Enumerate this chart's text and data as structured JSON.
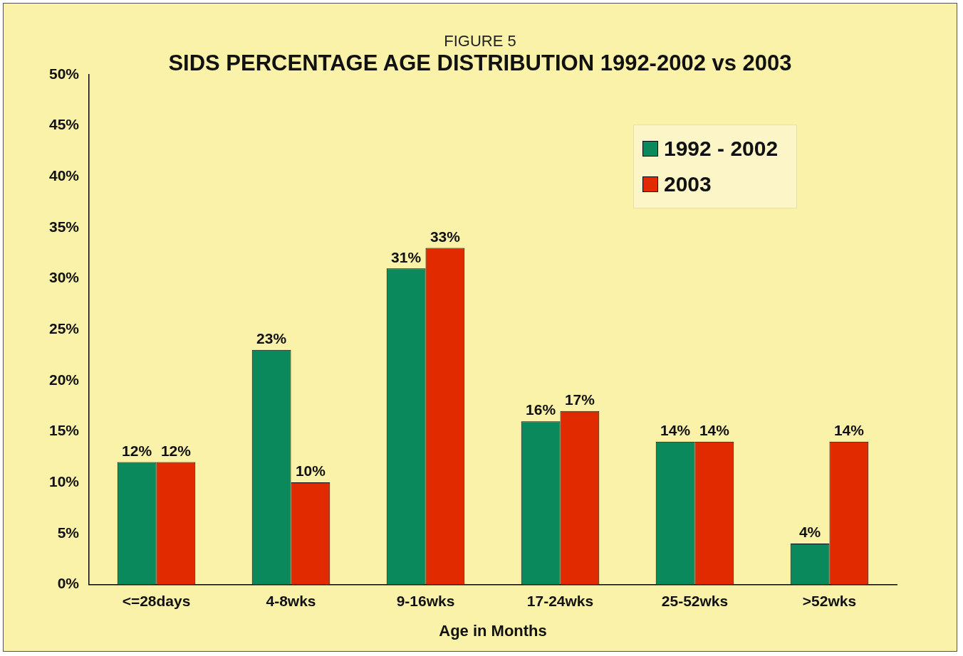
{
  "chart_data": {
    "type": "bar",
    "subtitle": "FIGURE 5",
    "title": "SIDS PERCENTAGE AGE DISTRIBUTION 1992-2002 vs 2003",
    "xlabel": "Age in Months",
    "categories": [
      "<=28days",
      "4-8wks",
      "9-16wks",
      "17-24wks",
      "25-52wks",
      ">52wks"
    ],
    "series": [
      {
        "name": "1992 - 2002",
        "color": "#0a8a5c",
        "values": [
          12,
          23,
          31,
          16,
          14,
          4
        ],
        "value_labels": [
          "12%",
          "23%",
          "31%",
          "16%",
          "14%",
          "4%"
        ]
      },
      {
        "name": "2003",
        "color": "#e22a00",
        "values": [
          12,
          10,
          33,
          17,
          14,
          14
        ],
        "value_labels": [
          "12%",
          "10%",
          "33%",
          "17%",
          "14%",
          "14%"
        ]
      }
    ],
    "ylim": [
      0,
      50
    ],
    "yticks": [
      {
        "value": 0,
        "label": "0%"
      },
      {
        "value": 5,
        "label": "5%"
      },
      {
        "value": 10,
        "label": "10%"
      },
      {
        "value": 15,
        "label": "15%"
      },
      {
        "value": 20,
        "label": "20%"
      },
      {
        "value": 25,
        "label": "25%"
      },
      {
        "value": 30,
        "label": "30%"
      },
      {
        "value": 35,
        "label": "35%"
      },
      {
        "value": 40,
        "label": "40%"
      },
      {
        "value": 45,
        "label": "45%"
      },
      {
        "value": 50,
        "label": "50%"
      }
    ],
    "grid": false,
    "legend": "top right"
  }
}
